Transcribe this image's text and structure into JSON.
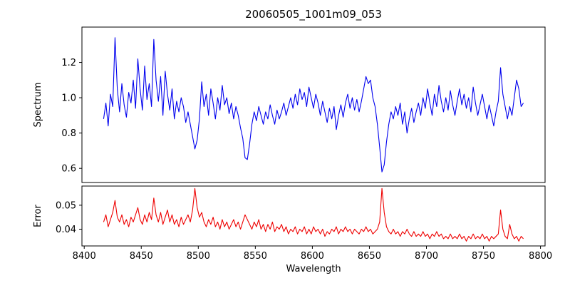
{
  "figure": {
    "title": "20060505_1001m09_053",
    "xlabel": "Wavelength",
    "background": "#ffffff"
  },
  "chart_data": [
    {
      "type": "line",
      "name": "spectrum",
      "ylabel": "Spectrum",
      "color": "#0000ee",
      "legend": "none",
      "grid": false,
      "xlim": [
        8398,
        8804
      ],
      "ylim": [
        0.52,
        1.4
      ],
      "xticks": [
        8400,
        8450,
        8500,
        8550,
        8600,
        8650,
        8700,
        8750,
        8800
      ],
      "xtick_labels": [
        "8400",
        "8450",
        "8500",
        "8550",
        "8600",
        "8650",
        "8700",
        "8750",
        "8800"
      ],
      "yticks": [
        0.6,
        0.8,
        1.0,
        1.2
      ],
      "ytick_labels": [
        "0.6",
        "0.8",
        "1.0",
        "1.2"
      ],
      "x_start": 8417,
      "x_step": 2,
      "values": [
        0.88,
        0.97,
        0.84,
        1.02,
        0.95,
        1.34,
        1.05,
        0.92,
        1.08,
        0.96,
        0.89,
        1.03,
        0.97,
        1.1,
        0.94,
        1.22,
        1.05,
        0.93,
        1.18,
        0.99,
        1.08,
        0.95,
        1.33,
        1.1,
        0.98,
        1.12,
        0.9,
        1.15,
        1.02,
        0.93,
        1.05,
        0.88,
        0.98,
        0.92,
        1.0,
        0.95,
        0.86,
        0.92,
        0.85,
        0.78,
        0.71,
        0.76,
        0.88,
        1.09,
        0.95,
        1.02,
        0.9,
        1.05,
        0.97,
        0.88,
        1.0,
        0.93,
        1.07,
        0.96,
        1.0,
        0.91,
        0.97,
        0.88,
        0.95,
        0.9,
        0.83,
        0.77,
        0.66,
        0.65,
        0.74,
        0.85,
        0.92,
        0.87,
        0.95,
        0.9,
        0.85,
        0.92,
        0.88,
        0.96,
        0.9,
        0.85,
        0.93,
        0.88,
        0.92,
        0.97,
        0.9,
        0.95,
        1.0,
        0.94,
        1.02,
        0.96,
        1.05,
        0.99,
        1.03,
        0.95,
        1.06,
        1.0,
        0.94,
        1.02,
        0.97,
        0.9,
        0.98,
        0.92,
        0.86,
        0.94,
        0.88,
        0.95,
        0.82,
        0.9,
        0.96,
        0.89,
        0.97,
        1.02,
        0.94,
        1.0,
        0.93,
        0.99,
        0.92,
        0.98,
        1.05,
        1.12,
        1.08,
        1.1,
        1.0,
        0.95,
        0.85,
        0.72,
        0.58,
        0.62,
        0.75,
        0.85,
        0.92,
        0.88,
        0.95,
        0.9,
        0.97,
        0.85,
        0.92,
        0.8,
        0.88,
        0.94,
        0.86,
        0.92,
        0.97,
        0.9,
        1.0,
        0.94,
        1.05,
        0.97,
        0.9,
        1.02,
        0.95,
        1.07,
        0.98,
        0.92,
        1.0,
        0.93,
        1.04,
        0.96,
        0.9,
        0.98,
        1.05,
        0.96,
        1.02,
        0.94,
        1.0,
        0.92,
        1.06,
        0.97,
        0.9,
        0.96,
        1.02,
        0.95,
        0.88,
        0.96,
        0.9,
        0.84,
        0.92,
        0.98,
        1.17,
        1.02,
        0.95,
        0.88,
        0.95,
        0.9,
        1.0,
        1.1,
        1.05,
        0.95,
        0.97
      ]
    },
    {
      "type": "line",
      "name": "error",
      "ylabel": "Error",
      "color": "#ee0000",
      "legend": "none",
      "grid": false,
      "xlim": [
        8398,
        8804
      ],
      "ylim": [
        0.033,
        0.058
      ],
      "xticks": [
        8400,
        8450,
        8500,
        8550,
        8600,
        8650,
        8700,
        8750,
        8800
      ],
      "xtick_labels": [
        "8400",
        "8450",
        "8500",
        "8550",
        "8600",
        "8650",
        "8700",
        "8750",
        "8800"
      ],
      "yticks": [
        0.04,
        0.05
      ],
      "ytick_labels": [
        "0.04",
        "0.05"
      ],
      "x_start": 8417,
      "x_step": 2,
      "values": [
        0.043,
        0.046,
        0.041,
        0.044,
        0.047,
        0.052,
        0.045,
        0.043,
        0.046,
        0.042,
        0.044,
        0.041,
        0.045,
        0.043,
        0.046,
        0.049,
        0.044,
        0.042,
        0.046,
        0.043,
        0.047,
        0.044,
        0.053,
        0.046,
        0.043,
        0.047,
        0.042,
        0.045,
        0.048,
        0.043,
        0.046,
        0.042,
        0.044,
        0.041,
        0.045,
        0.042,
        0.044,
        0.046,
        0.043,
        0.048,
        0.057,
        0.049,
        0.045,
        0.047,
        0.043,
        0.041,
        0.044,
        0.042,
        0.045,
        0.041,
        0.043,
        0.04,
        0.044,
        0.041,
        0.043,
        0.04,
        0.042,
        0.044,
        0.041,
        0.043,
        0.04,
        0.043,
        0.046,
        0.044,
        0.042,
        0.04,
        0.043,
        0.041,
        0.044,
        0.04,
        0.042,
        0.039,
        0.042,
        0.04,
        0.043,
        0.039,
        0.041,
        0.04,
        0.042,
        0.039,
        0.041,
        0.038,
        0.04,
        0.039,
        0.041,
        0.038,
        0.04,
        0.039,
        0.041,
        0.038,
        0.04,
        0.038,
        0.041,
        0.039,
        0.04,
        0.038,
        0.04,
        0.037,
        0.039,
        0.038,
        0.04,
        0.039,
        0.041,
        0.038,
        0.04,
        0.039,
        0.041,
        0.039,
        0.04,
        0.038,
        0.04,
        0.039,
        0.038,
        0.04,
        0.039,
        0.041,
        0.039,
        0.04,
        0.038,
        0.039,
        0.04,
        0.043,
        0.057,
        0.047,
        0.041,
        0.039,
        0.038,
        0.04,
        0.038,
        0.039,
        0.037,
        0.039,
        0.038,
        0.04,
        0.038,
        0.037,
        0.039,
        0.037,
        0.038,
        0.037,
        0.039,
        0.037,
        0.038,
        0.036,
        0.038,
        0.037,
        0.039,
        0.037,
        0.038,
        0.036,
        0.037,
        0.036,
        0.038,
        0.036,
        0.037,
        0.036,
        0.038,
        0.036,
        0.037,
        0.035,
        0.037,
        0.036,
        0.038,
        0.036,
        0.037,
        0.036,
        0.038,
        0.036,
        0.037,
        0.035,
        0.037,
        0.036,
        0.037,
        0.038,
        0.048,
        0.04,
        0.037,
        0.036,
        0.042,
        0.038,
        0.036,
        0.037,
        0.035,
        0.037,
        0.036
      ]
    }
  ]
}
